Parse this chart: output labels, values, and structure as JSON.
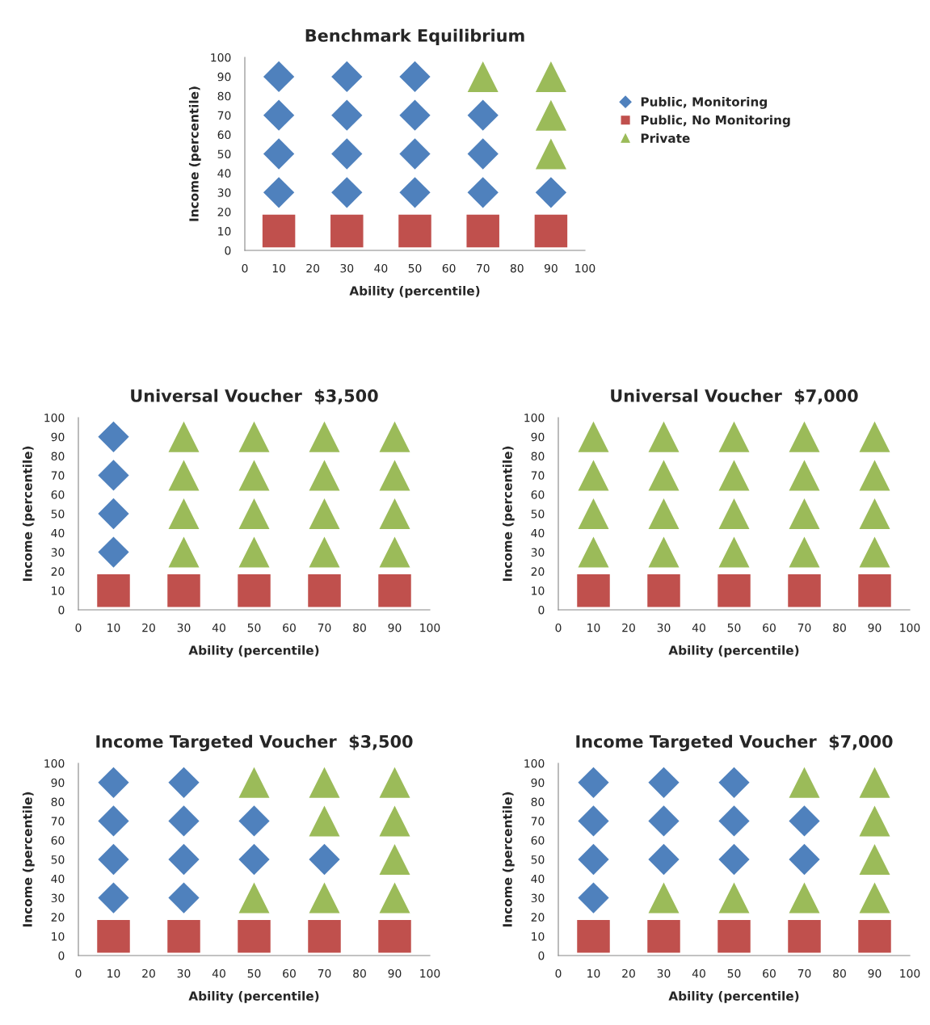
{
  "chart_data": [
    {
      "type": "scatter",
      "title": "Benchmark Equilibrium",
      "xlabel": "Ability (percentile)",
      "ylabel": "Income (percentile)",
      "xlim": [
        0,
        100
      ],
      "ylim": [
        0,
        100
      ],
      "xticks": [
        0,
        10,
        20,
        30,
        40,
        50,
        60,
        70,
        80,
        90,
        100
      ],
      "yticks": [
        0,
        10,
        20,
        30,
        40,
        50,
        60,
        70,
        80,
        90,
        100
      ],
      "grid": false,
      "legend": "right",
      "series": [
        {
          "name": "Public, Monitoring",
          "color": "#4f81bd",
          "marker": "diamond",
          "x": [
            10,
            10,
            10,
            10,
            30,
            30,
            30,
            30,
            50,
            50,
            50,
            50,
            70,
            70,
            70,
            90
          ],
          "values": [
            30,
            50,
            70,
            90,
            30,
            50,
            70,
            90,
            30,
            50,
            70,
            90,
            30,
            50,
            70,
            30
          ]
        },
        {
          "name": "Public, No Monitoring",
          "color": "#c0504d",
          "marker": "square",
          "x": [
            10,
            30,
            50,
            70,
            90
          ],
          "values": [
            10,
            10,
            10,
            10,
            10
          ]
        },
        {
          "name": "Private",
          "color": "#9bbb59",
          "marker": "triangle",
          "x": [
            70,
            90,
            90,
            90
          ],
          "values": [
            90,
            50,
            70,
            90
          ]
        }
      ]
    },
    {
      "type": "scatter",
      "title": "Universal Voucher  $3,500",
      "xlabel": "Ability (percentile)",
      "ylabel": "Income (percentile)",
      "xlim": [
        0,
        100
      ],
      "ylim": [
        0,
        100
      ],
      "xticks": [
        0,
        10,
        20,
        30,
        40,
        50,
        60,
        70,
        80,
        90,
        100
      ],
      "yticks": [
        0,
        10,
        20,
        30,
        40,
        50,
        60,
        70,
        80,
        90,
        100
      ],
      "grid": false,
      "legend": false,
      "series": [
        {
          "color": "#4f81bd",
          "marker": "diamond",
          "x": [
            10,
            10,
            10,
            10
          ],
          "values": [
            30,
            50,
            70,
            90
          ]
        },
        {
          "color": "#c0504d",
          "marker": "square",
          "x": [
            10,
            30,
            50,
            70,
            90
          ],
          "values": [
            10,
            10,
            10,
            10,
            10
          ]
        },
        {
          "color": "#9bbb59",
          "marker": "triangle",
          "x": [
            30,
            30,
            30,
            30,
            50,
            50,
            50,
            50,
            70,
            70,
            70,
            70,
            90,
            90,
            90,
            90
          ],
          "values": [
            30,
            50,
            70,
            90,
            30,
            50,
            70,
            90,
            30,
            50,
            70,
            90,
            30,
            50,
            70,
            90
          ]
        }
      ]
    },
    {
      "type": "scatter",
      "title": "Universal Voucher  $7,000",
      "xlabel": "Ability (percentile)",
      "ylabel": "Income (percentile)",
      "xlim": [
        0,
        100
      ],
      "ylim": [
        0,
        100
      ],
      "xticks": [
        0,
        10,
        20,
        30,
        40,
        50,
        60,
        70,
        80,
        90,
        100
      ],
      "yticks": [
        0,
        10,
        20,
        30,
        40,
        50,
        60,
        70,
        80,
        90,
        100
      ],
      "grid": false,
      "legend": false,
      "series": [
        {
          "color": "#c0504d",
          "marker": "square",
          "x": [
            10,
            30,
            50,
            70,
            90
          ],
          "values": [
            10,
            10,
            10,
            10,
            10
          ]
        },
        {
          "color": "#9bbb59",
          "marker": "triangle",
          "x": [
            10,
            10,
            10,
            10,
            30,
            30,
            30,
            30,
            50,
            50,
            50,
            50,
            70,
            70,
            70,
            70,
            90,
            90,
            90,
            90
          ],
          "values": [
            30,
            50,
            70,
            90,
            30,
            50,
            70,
            90,
            30,
            50,
            70,
            90,
            30,
            50,
            70,
            90,
            30,
            50,
            70,
            90
          ]
        }
      ]
    },
    {
      "type": "scatter",
      "title": "Income Targeted Voucher  $3,500",
      "xlabel": "Ability (percentile)",
      "ylabel": "Income (percentile)",
      "xlim": [
        0,
        100
      ],
      "ylim": [
        0,
        100
      ],
      "xticks": [
        0,
        10,
        20,
        30,
        40,
        50,
        60,
        70,
        80,
        90,
        100
      ],
      "yticks": [
        0,
        10,
        20,
        30,
        40,
        50,
        60,
        70,
        80,
        90,
        100
      ],
      "grid": false,
      "legend": false,
      "series": [
        {
          "color": "#4f81bd",
          "marker": "diamond",
          "x": [
            10,
            10,
            10,
            10,
            30,
            30,
            30,
            30,
            50,
            50,
            70
          ],
          "values": [
            30,
            50,
            70,
            90,
            30,
            50,
            70,
            90,
            50,
            70,
            50
          ]
        },
        {
          "color": "#c0504d",
          "marker": "square",
          "x": [
            10,
            30,
            50,
            70,
            90
          ],
          "values": [
            10,
            10,
            10,
            10,
            10
          ]
        },
        {
          "color": "#9bbb59",
          "marker": "triangle",
          "x": [
            50,
            50,
            70,
            70,
            70,
            90,
            90,
            90,
            90
          ],
          "values": [
            30,
            90,
            30,
            70,
            90,
            30,
            50,
            70,
            90
          ]
        }
      ]
    },
    {
      "type": "scatter",
      "title": "Income Targeted Voucher  $7,000",
      "xlabel": "Ability (percentile)",
      "ylabel": "Income (percentile)",
      "xlim": [
        0,
        100
      ],
      "ylim": [
        0,
        100
      ],
      "xticks": [
        0,
        10,
        20,
        30,
        40,
        50,
        60,
        70,
        80,
        90,
        100
      ],
      "yticks": [
        0,
        10,
        20,
        30,
        40,
        50,
        60,
        70,
        80,
        90,
        100
      ],
      "grid": false,
      "legend": false,
      "series": [
        {
          "color": "#4f81bd",
          "marker": "diamond",
          "x": [
            10,
            10,
            10,
            10,
            30,
            30,
            30,
            50,
            50,
            50,
            70,
            70
          ],
          "values": [
            30,
            50,
            70,
            90,
            50,
            70,
            90,
            50,
            70,
            90,
            50,
            70
          ]
        },
        {
          "color": "#c0504d",
          "marker": "square",
          "x": [
            10,
            30,
            50,
            70,
            90
          ],
          "values": [
            10,
            10,
            10,
            10,
            10
          ]
        },
        {
          "color": "#9bbb59",
          "marker": "triangle",
          "x": [
            30,
            50,
            70,
            70,
            90,
            90,
            90,
            90
          ],
          "values": [
            30,
            30,
            30,
            90,
            30,
            50,
            70,
            90
          ]
        }
      ]
    }
  ]
}
